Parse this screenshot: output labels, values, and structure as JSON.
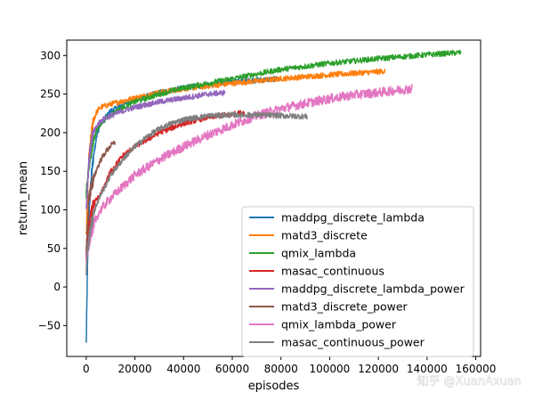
{
  "watermark": "知乎 @XuanAxuan",
  "chart_data": {
    "type": "line",
    "title": "",
    "xlabel": "episodes",
    "ylabel": "return_mean",
    "xlim": [
      -8000,
      162000
    ],
    "ylim": [
      -90,
      320
    ],
    "xticks": [
      0,
      20000,
      40000,
      60000,
      80000,
      100000,
      120000,
      140000,
      160000
    ],
    "xtick_labels": [
      "0",
      "20000",
      "40000",
      "60000",
      "80000",
      "100000",
      "120000",
      "140000",
      "160000"
    ],
    "yticks": [
      -50,
      0,
      50,
      100,
      150,
      200,
      250,
      300
    ],
    "ytick_labels": [
      "−50",
      "0",
      "50",
      "100",
      "150",
      "200",
      "250",
      "300"
    ],
    "grid": false,
    "legend_position": "lower-right",
    "series": [
      {
        "name": "maddpg_discrete_lambda",
        "color": "#1f77b4",
        "x": [
          0,
          500,
          1000,
          2000,
          3000,
          4000,
          5000,
          6000,
          8000,
          10000,
          15000,
          20000,
          30000,
          40000,
          50000,
          60000,
          70000,
          80000
        ],
        "y": [
          -75,
          20,
          90,
          140,
          170,
          190,
          203,
          212,
          220,
          228,
          236,
          243,
          252,
          258,
          262,
          266,
          268,
          270
        ]
      },
      {
        "name": "matd3_discrete",
        "color": "#ff7f0e",
        "x": [
          0,
          500,
          1000,
          2000,
          3000,
          4000,
          5000,
          6000,
          8000,
          10000,
          15000,
          20000,
          30000,
          40000,
          60000,
          80000,
          100000,
          120000,
          123000
        ],
        "y": [
          60,
          120,
          160,
          195,
          215,
          225,
          230,
          233,
          235,
          237,
          241,
          245,
          252,
          257,
          264,
          270,
          275,
          279,
          280
        ]
      },
      {
        "name": "qmix_lambda",
        "color": "#2ca02c",
        "x": [
          0,
          500,
          1000,
          2000,
          3000,
          4000,
          5000,
          6000,
          8000,
          10000,
          15000,
          20000,
          30000,
          40000,
          60000,
          80000,
          100000,
          120000,
          140000,
          154000
        ],
        "y": [
          120,
          135,
          150,
          175,
          190,
          200,
          207,
          212,
          218,
          223,
          233,
          240,
          250,
          258,
          270,
          282,
          290,
          296,
          301,
          304
        ]
      },
      {
        "name": "masac_continuous",
        "color": "#d62728",
        "x": [
          0,
          500,
          1000,
          2000,
          3000,
          4000,
          6000,
          8000,
          10000,
          15000,
          20000,
          30000,
          40000,
          50000,
          60000,
          65000
        ],
        "y": [
          40,
          60,
          75,
          95,
          105,
          112,
          120,
          135,
          150,
          170,
          182,
          200,
          212,
          220,
          224,
          226
        ]
      },
      {
        "name": "maddpg_discrete_lambda_power",
        "color": "#9467bd",
        "x": [
          0,
          500,
          1000,
          2000,
          3000,
          4000,
          5000,
          6000,
          8000,
          10000,
          15000,
          20000,
          30000,
          40000,
          50000,
          57000
        ],
        "y": [
          100,
          130,
          160,
          185,
          200,
          207,
          212,
          215,
          219,
          222,
          228,
          233,
          240,
          245,
          250,
          252
        ]
      },
      {
        "name": "matd3_discrete_power",
        "color": "#8c564b",
        "x": [
          0,
          500,
          1000,
          2000,
          3000,
          4000,
          6000,
          8000,
          10000,
          12000
        ],
        "y": [
          40,
          80,
          110,
          130,
          140,
          150,
          165,
          175,
          183,
          188
        ]
      },
      {
        "name": "qmix_lambda_power",
        "color": "#e377c2",
        "x": [
          0,
          500,
          1000,
          2000,
          3000,
          4000,
          5000,
          6000,
          8000,
          10000,
          15000,
          20000,
          30000,
          40000,
          50000,
          60000,
          70000,
          80000,
          90000,
          100000,
          110000,
          120000,
          130000,
          134000
        ],
        "y": [
          35,
          45,
          55,
          70,
          80,
          88,
          95,
          100,
          108,
          115,
          130,
          145,
          165,
          182,
          197,
          210,
          222,
          231,
          238,
          244,
          249,
          252,
          256,
          257
        ]
      },
      {
        "name": "masac_continuous_power",
        "color": "#7f7f7f",
        "x": [
          0,
          500,
          1000,
          2000,
          3000,
          4000,
          6000,
          8000,
          10000,
          15000,
          20000,
          25000,
          30000,
          35000,
          40000,
          50000,
          60000,
          70000,
          80000,
          91000
        ],
        "y": [
          20,
          45,
          60,
          80,
          95,
          105,
          120,
          132,
          145,
          165,
          182,
          195,
          205,
          212,
          217,
          222,
          223,
          223,
          222,
          221
        ]
      }
    ]
  }
}
